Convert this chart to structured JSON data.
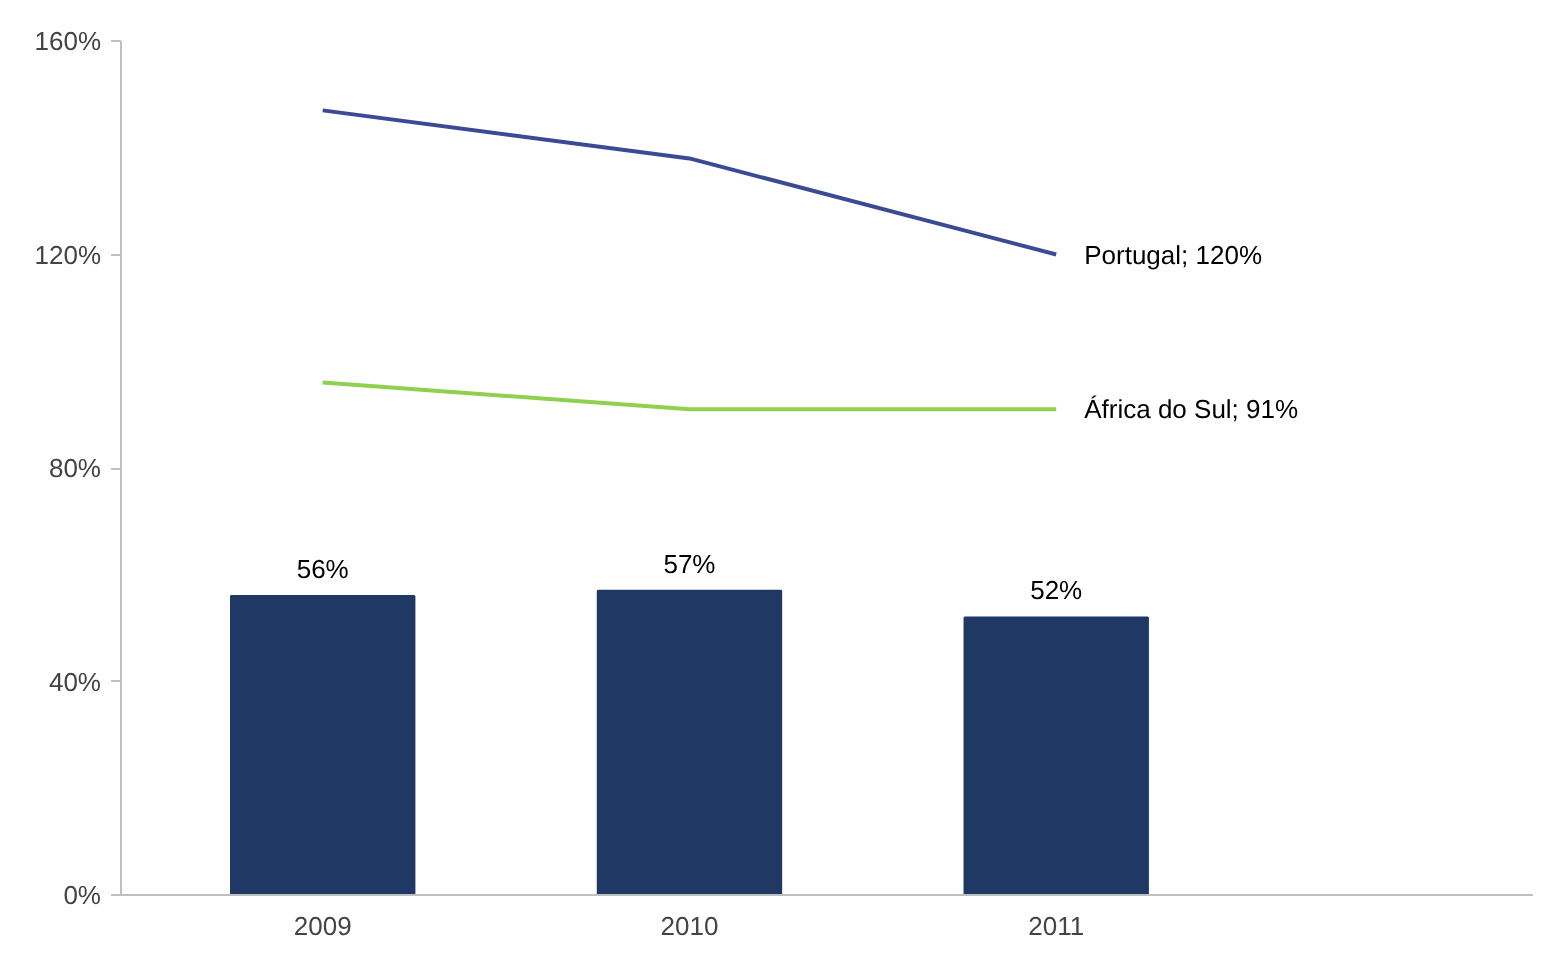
{
  "chart_data": {
    "type": "bar",
    "categories": [
      "2009",
      "2010",
      "2011"
    ],
    "series": [
      {
        "color": "#1f3864",
        "values": [
          56,
          57,
          52
        ],
        "value_labels": [
          "56%",
          "57%",
          "52%"
        ]
      },
      {
        "type": "line",
        "color": "#3b4a94",
        "values": [
          147,
          138,
          120
        ]
      },
      {
        "type": "line",
        "color": "#8fd14f",
        "values": [
          96,
          91,
          91
        ]
      }
    ],
    "ylim": [
      0,
      160
    ],
    "yticks": [
      {
        "value": 0,
        "label": "0%"
      },
      {
        "value": 40,
        "label": "40%"
      },
      {
        "value": 80,
        "label": "80%"
      },
      {
        "value": 120,
        "label": "120%"
      },
      {
        "value": 160,
        "label": "160%"
      }
    ],
    "annotations": [
      {
        "text": "Portugal; 120%",
        "x": "2011",
        "y": 120
      },
      {
        "text": "África do Sul; 91%",
        "x": "2011",
        "y": 91
      }
    ],
    "grid": false,
    "marker": "none",
    "line_style": "solid"
  }
}
